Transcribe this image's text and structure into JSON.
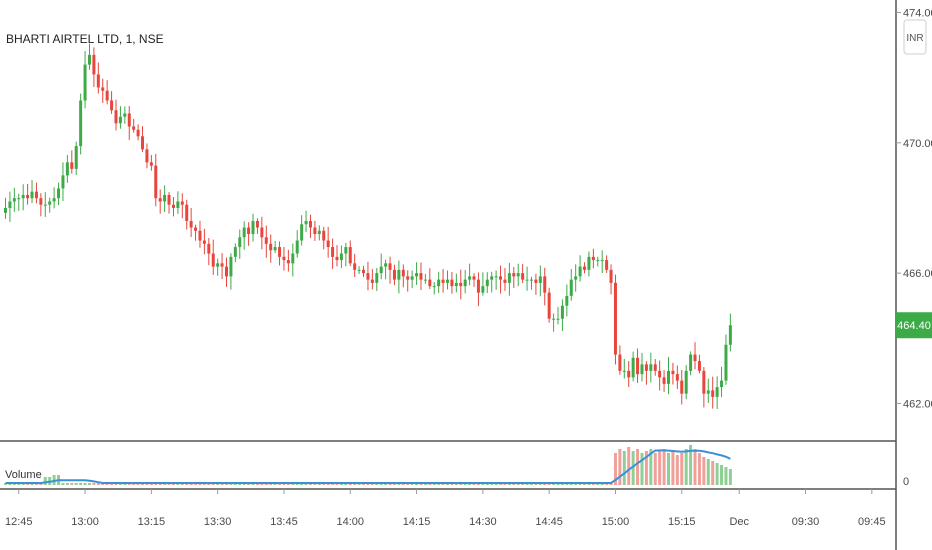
{
  "header": {
    "symbol_title": "BHARTI AIRTEL LTD, 1, NSE",
    "currency_button": "INR"
  },
  "price_panel": {
    "y_ticks": [
      {
        "value": 462,
        "label": "462.00"
      },
      {
        "value": 466,
        "label": "466.00"
      },
      {
        "value": 470,
        "label": "470.00"
      },
      {
        "value": 474,
        "label": "474.00"
      }
    ],
    "ylim": [
      461.0,
      474.2
    ],
    "last_price": {
      "value": 464.4,
      "label": "464.40"
    }
  },
  "volume_panel": {
    "title": "Volume",
    "y_tick_label": "0"
  },
  "time_axis": {
    "ticks": [
      {
        "bar": 3,
        "label": "12:45"
      },
      {
        "bar": 18,
        "label": "13:00"
      },
      {
        "bar": 33,
        "label": "13:15"
      },
      {
        "bar": 48,
        "label": "13:30"
      },
      {
        "bar": 63,
        "label": "13:45"
      },
      {
        "bar": 78,
        "label": "14:00"
      },
      {
        "bar": 93,
        "label": "14:15"
      },
      {
        "bar": 108,
        "label": "14:30"
      },
      {
        "bar": 123,
        "label": "14:45"
      },
      {
        "bar": 138,
        "label": "15:00"
      },
      {
        "bar": 153,
        "label": "15:15"
      },
      {
        "bar": 166,
        "label": "Dec"
      },
      {
        "bar": 181,
        "label": "09:30"
      },
      {
        "bar": 196,
        "label": "09:45"
      }
    ]
  },
  "colors": {
    "up": "#3cab47",
    "down": "#e8453c",
    "volume_up": "#8fcf95",
    "volume_down": "#f0a09a",
    "volume_ma": "#3d8fd6",
    "price_badge": "#3cab47"
  },
  "chart_data": {
    "type": "candlestick",
    "title": "BHARTI AIRTEL LTD, 1, NSE",
    "x_unit": "1-minute bars",
    "close_series": [
      468.0,
      468.2,
      468.3,
      468.3,
      468.4,
      468.3,
      468.5,
      468.3,
      468.1,
      468.1,
      468.2,
      468.3,
      468.6,
      469.0,
      469.4,
      469.2,
      469.9,
      471.3,
      472.4,
      472.7,
      472.1,
      471.7,
      471.6,
      471.3,
      471.0,
      470.6,
      470.8,
      470.9,
      470.5,
      470.4,
      470.2,
      469.8,
      469.4,
      469.3,
      468.3,
      468.2,
      468.4,
      468.1,
      468.0,
      468.2,
      468.1,
      467.6,
      467.4,
      467.3,
      467.0,
      466.9,
      466.6,
      466.2,
      466.3,
      466.2,
      465.9,
      466.5,
      466.8,
      467.1,
      467.4,
      467.2,
      467.6,
      467.4,
      467.1,
      466.9,
      466.7,
      466.8,
      466.5,
      466.4,
      466.3,
      466.6,
      467.0,
      467.5,
      467.6,
      467.4,
      467.2,
      467.3,
      467.0,
      466.8,
      466.5,
      466.4,
      466.6,
      466.8,
      466.3,
      466.1,
      466.1,
      466.0,
      465.8,
      465.7,
      466.0,
      466.2,
      466.3,
      466.1,
      465.8,
      466.1,
      465.9,
      465.8,
      465.9,
      466.0,
      465.8,
      465.8,
      465.6,
      465.6,
      465.8,
      465.7,
      465.8,
      465.6,
      465.7,
      465.6,
      465.8,
      465.9,
      465.8,
      465.4,
      465.6,
      465.8,
      465.9,
      465.9,
      465.8,
      465.7,
      466.0,
      465.9,
      466.0,
      465.8,
      465.8,
      465.8,
      465.7,
      465.9,
      465.4,
      464.6,
      464.6,
      464.6,
      465.0,
      465.3,
      465.8,
      465.9,
      466.2,
      466.1,
      466.5,
      466.4,
      466.4,
      466.4,
      466.1,
      465.7,
      463.5,
      463.0,
      463.0,
      462.8,
      463.4,
      462.9,
      463.2,
      463.0,
      463.2,
      463.0,
      462.8,
      462.6,
      463.0,
      462.9,
      462.7,
      462.3,
      463.0,
      463.5,
      463.3,
      463.0,
      462.3,
      462.4,
      462.2,
      462.5,
      462.7,
      463.8,
      464.4
    ],
    "last_price": 464.4,
    "ylim": [
      461.0,
      474.2
    ],
    "price_axis_ticks": [
      462,
      466,
      470,
      474
    ],
    "x_tick_labels": [
      "12:45",
      "13:00",
      "13:15",
      "13:30",
      "13:45",
      "14:00",
      "14:15",
      "14:30",
      "14:45",
      "15:00",
      "15:15",
      "Dec",
      "09:30",
      "09:45"
    ],
    "volume": {
      "name": "Volume",
      "base_level": 1,
      "spike_bars": {
        "9": 4,
        "10": 4,
        "11": 5,
        "12": 5
      },
      "late_session": [
        16,
        18,
        17,
        19,
        17,
        18,
        16,
        17,
        18,
        16,
        17,
        18,
        16,
        17,
        15,
        16,
        18,
        20,
        18,
        16,
        14,
        13,
        12,
        11,
        10,
        9,
        8
      ]
    },
    "legend": "none",
    "grid": false
  }
}
